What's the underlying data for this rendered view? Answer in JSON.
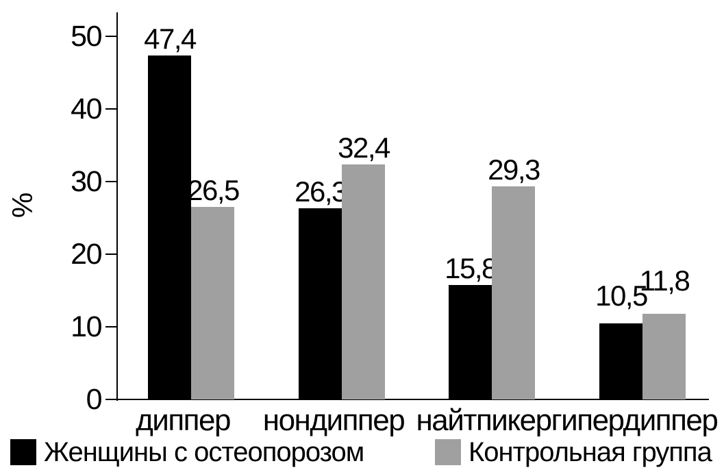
{
  "chart_data": {
    "type": "bar",
    "title": "",
    "xlabel": "",
    "ylabel": "%",
    "categories": [
      "диппер",
      "нондиппер",
      "найтпикер",
      "гипердиппер"
    ],
    "series": [
      {
        "name": "Женщины с остеопорозом",
        "color": "#000000",
        "values": [
          47.4,
          26.3,
          15.8,
          10.5
        ],
        "value_labels": [
          "47,4",
          "26,3",
          "15,8",
          "10,5"
        ]
      },
      {
        "name": "Контрольная группа",
        "color": "#a0a0a0",
        "values": [
          26.5,
          32.4,
          29.3,
          11.8
        ],
        "value_labels": [
          "26,5",
          "32,4",
          "29,3",
          "11,8"
        ]
      }
    ],
    "yticks": [
      0,
      10,
      20,
      30,
      40,
      50
    ],
    "ylim": [
      0,
      53
    ],
    "grid": false,
    "legend_position": "bottom",
    "bar_value_labels_shown": true,
    "decimal_separator": ",",
    "label_lifts": [
      [
        0,
        0
      ],
      [
        0,
        0
      ],
      [
        0,
        0
      ],
      [
        16,
        24
      ]
    ]
  }
}
